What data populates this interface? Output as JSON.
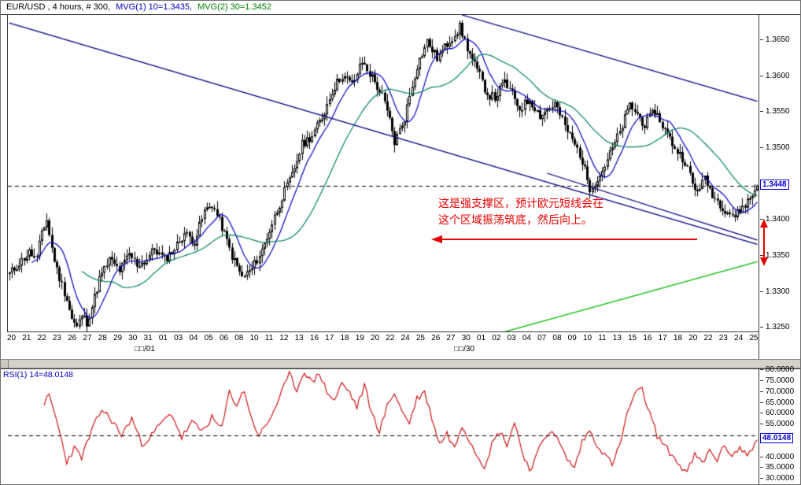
{
  "price_panel": {
    "header": {
      "symbol": "EUR/USD , 4 hours, # 300,",
      "mvg1": "MVG(1) 10=1.3435,",
      "mvg2": "MVG(2) 30=1.3452",
      "mvg1_color": "#0000bf",
      "mvg2_color": "#008000"
    },
    "y_axis": {
      "labels": [
        {
          "text": "1.3650",
          "value": 1.365
        },
        {
          "text": "1.3600",
          "value": 1.36
        },
        {
          "text": "1.3550",
          "value": 1.355
        },
        {
          "text": "1.3500",
          "value": 1.35
        },
        {
          "text": "1.3400",
          "value": 1.34
        },
        {
          "text": "1.3350",
          "value": 1.335
        },
        {
          "text": "1.3300",
          "value": 1.33
        },
        {
          "text": "1.3250",
          "value": 1.325
        }
      ],
      "current": {
        "text": "1.3448",
        "value": 1.3448,
        "color": "#0000d6"
      }
    },
    "x_axis": {
      "labels": [
        "20",
        "21",
        "22",
        "23",
        "26",
        "27",
        "28",
        "29",
        "30",
        "31",
        "01",
        "03",
        "04",
        "05",
        "06",
        "08",
        "10",
        "11",
        "12",
        "13",
        "16",
        "17",
        "18",
        "19",
        "20",
        "22",
        "24",
        "25",
        "26",
        "27",
        "30",
        "01",
        "02",
        "03",
        "04",
        "07",
        "08",
        "09",
        "10",
        "11",
        "13",
        "15",
        "16",
        "17",
        "18",
        "20",
        "22",
        "23",
        "24",
        "25"
      ],
      "month_labels": [
        {
          "text": "□□/01"
        },
        {
          "text": "□□/30"
        }
      ]
    },
    "annotation": {
      "line1": "这是强支撑区，预计欧元短线会在",
      "line2": "这个区域振荡筑底，然后向上。",
      "color": "#e80000"
    }
  },
  "rsi_panel": {
    "label": "RSI(1) 14=48.0148",
    "label_color": "#0000bf",
    "y_axis": {
      "labels": [
        {
          "text": "80.0000",
          "value": 80
        },
        {
          "text": "75.0000",
          "value": 75
        },
        {
          "text": "70.0000",
          "value": 70
        },
        {
          "text": "65.0000",
          "value": 65
        },
        {
          "text": "60.0000",
          "value": 60
        },
        {
          "text": "55.0000",
          "value": 55
        },
        {
          "text": "40.0000",
          "value": 40
        },
        {
          "text": "35.0000",
          "value": 35
        },
        {
          "text": "30.0000",
          "value": 30
        }
      ],
      "current": {
        "text": "48.0148",
        "value": 48.0148,
        "color": "#0000d6"
      }
    }
  },
  "chart_data": [
    {
      "type": "candlestick",
      "symbol": "EUR/USD",
      "timeframe": "4 hours",
      "bars": 300,
      "ylim": [
        1.3245,
        1.3685
      ],
      "last_price": 1.3448,
      "dashed_level": 1.3448,
      "candle_color": "#000000",
      "price_anchors": [
        [
          0,
          1.3325
        ],
        [
          4,
          1.334
        ],
        [
          8,
          1.3355
        ],
        [
          11,
          1.3345
        ],
        [
          13,
          1.3385
        ],
        [
          15,
          1.34
        ],
        [
          17,
          1.336
        ],
        [
          19,
          1.333
        ],
        [
          21,
          1.331
        ],
        [
          23,
          1.329
        ],
        [
          25,
          1.3262
        ],
        [
          27,
          1.325
        ],
        [
          29,
          1.3268
        ],
        [
          31,
          1.3258
        ],
        [
          33,
          1.328
        ],
        [
          36,
          1.3318
        ],
        [
          40,
          1.3345
        ],
        [
          44,
          1.333
        ],
        [
          48,
          1.3352
        ],
        [
          51,
          1.3338
        ],
        [
          54,
          1.3342
        ],
        [
          58,
          1.336
        ],
        [
          62,
          1.3345
        ],
        [
          66,
          1.336
        ],
        [
          70,
          1.3382
        ],
        [
          74,
          1.337
        ],
        [
          78,
          1.3412
        ],
        [
          81,
          1.3422
        ],
        [
          85,
          1.339
        ],
        [
          89,
          1.335
        ],
        [
          93,
          1.332
        ],
        [
          97,
          1.3332
        ],
        [
          101,
          1.3358
        ],
        [
          105,
          1.3395
        ],
        [
          109,
          1.3432
        ],
        [
          113,
          1.3462
        ],
        [
          117,
          1.3505
        ],
        [
          121,
          1.3518
        ],
        [
          125,
          1.3542
        ],
        [
          129,
          1.358
        ],
        [
          133,
          1.3602
        ],
        [
          137,
          1.3588
        ],
        [
          141,
          1.362
        ],
        [
          145,
          1.3598
        ],
        [
          149,
          1.3572
        ],
        [
          152,
          1.3538
        ],
        [
          154,
          1.3508
        ],
        [
          158,
          1.3542
        ],
        [
          161,
          1.3588
        ],
        [
          163,
          1.3615
        ],
        [
          167,
          1.3648
        ],
        [
          171,
          1.3625
        ],
        [
          176,
          1.365
        ],
        [
          180,
          1.3668
        ],
        [
          184,
          1.363
        ],
        [
          188,
          1.36
        ],
        [
          191,
          1.3575
        ],
        [
          194,
          1.357
        ],
        [
          198,
          1.3592
        ],
        [
          204,
          1.3555
        ],
        [
          208,
          1.3568
        ],
        [
          212,
          1.3545
        ],
        [
          218,
          1.3562
        ],
        [
          222,
          1.353
        ],
        [
          228,
          1.3492
        ],
        [
          232,
          1.3445
        ],
        [
          236,
          1.3462
        ],
        [
          240,
          1.3492
        ],
        [
          244,
          1.3522
        ],
        [
          248,
          1.356
        ],
        [
          252,
          1.3542
        ],
        [
          254,
          1.3532
        ],
        [
          258,
          1.3552
        ],
        [
          262,
          1.3525
        ],
        [
          266,
          1.35
        ],
        [
          270,
          1.3482
        ],
        [
          274,
          1.344
        ],
        [
          278,
          1.3456
        ],
        [
          282,
          1.343
        ],
        [
          286,
          1.3415
        ],
        [
          290,
          1.3405
        ],
        [
          294,
          1.3422
        ],
        [
          297,
          1.3435
        ],
        [
          299,
          1.3448
        ]
      ],
      "moving_averages": [
        {
          "name": "MVG(1) 10",
          "period": 10,
          "value": 1.3435,
          "color": "#0000c8"
        },
        {
          "name": "MVG(2) 30",
          "period": 30,
          "value": 1.3452,
          "color": "#008066"
        }
      ],
      "trendlines": [
        {
          "color": "#000080",
          "from": [
            0,
            1.3674
          ],
          "to": [
            299,
            1.3366
          ]
        },
        {
          "color": "#000080",
          "from": [
            181,
            1.3685
          ],
          "to": [
            299,
            1.3565
          ]
        },
        {
          "color": "#000080",
          "from": [
            215,
            1.3465
          ],
          "to": [
            299,
            1.3372
          ]
        },
        {
          "color": "#00bb00",
          "from": [
            183,
            1.323
          ],
          "to": [
            299,
            1.3342
          ]
        }
      ]
    },
    {
      "type": "line",
      "name": "RSI(1) 14",
      "last_value": 48.0148,
      "ylim": [
        27.5,
        80.5
      ],
      "dashed_level": 50,
      "color": "#cc0000",
      "rsi_anchors": [
        [
          14,
          65
        ],
        [
          16,
          68
        ],
        [
          19,
          57
        ],
        [
          23,
          38
        ],
        [
          26,
          44
        ],
        [
          29,
          40
        ],
        [
          33,
          52
        ],
        [
          37,
          62
        ],
        [
          41,
          57
        ],
        [
          45,
          50
        ],
        [
          49,
          58
        ],
        [
          53,
          46
        ],
        [
          57,
          50
        ],
        [
          61,
          56
        ],
        [
          65,
          60
        ],
        [
          69,
          49
        ],
        [
          73,
          56
        ],
        [
          77,
          52
        ],
        [
          81,
          58
        ],
        [
          85,
          53
        ],
        [
          88,
          70
        ],
        [
          91,
          64
        ],
        [
          94,
          71
        ],
        [
          97,
          57
        ],
        [
          100,
          50
        ],
        [
          103,
          55
        ],
        [
          106,
          62
        ],
        [
          109,
          70
        ],
        [
          112,
          78
        ],
        [
          115,
          71
        ],
        [
          118,
          80
        ],
        [
          121,
          74
        ],
        [
          124,
          79
        ],
        [
          127,
          70
        ],
        [
          130,
          66
        ],
        [
          133,
          74
        ],
        [
          136,
          70
        ],
        [
          139,
          63
        ],
        [
          142,
          73
        ],
        [
          145,
          60
        ],
        [
          148,
          52
        ],
        [
          151,
          63
        ],
        [
          154,
          70
        ],
        [
          157,
          61
        ],
        [
          160,
          56
        ],
        [
          163,
          67
        ],
        [
          166,
          70
        ],
        [
          169,
          58
        ],
        [
          172,
          46
        ],
        [
          175,
          51
        ],
        [
          178,
          44
        ],
        [
          181,
          55
        ],
        [
          184,
          48
        ],
        [
          187,
          41
        ],
        [
          190,
          36
        ],
        [
          193,
          46
        ],
        [
          196,
          52
        ],
        [
          199,
          46
        ],
        [
          202,
          56
        ],
        [
          205,
          43
        ],
        [
          208,
          34
        ],
        [
          211,
          41
        ],
        [
          214,
          49
        ],
        [
          217,
          53
        ],
        [
          220,
          46
        ],
        [
          223,
          39
        ],
        [
          226,
          35
        ],
        [
          229,
          47
        ],
        [
          232,
          52
        ],
        [
          235,
          46
        ],
        [
          238,
          41
        ],
        [
          241,
          37
        ],
        [
          244,
          45
        ],
        [
          247,
          60
        ],
        [
          250,
          69
        ],
        [
          253,
          71
        ],
        [
          256,
          60
        ],
        [
          259,
          50
        ],
        [
          262,
          45
        ],
        [
          265,
          41
        ],
        [
          268,
          36
        ],
        [
          271,
          33
        ],
        [
          274,
          41
        ],
        [
          277,
          37
        ],
        [
          280,
          43
        ],
        [
          283,
          39
        ],
        [
          286,
          45
        ],
        [
          289,
          41
        ],
        [
          292,
          44
        ],
        [
          295,
          41
        ],
        [
          299,
          48.0148
        ]
      ]
    }
  ]
}
